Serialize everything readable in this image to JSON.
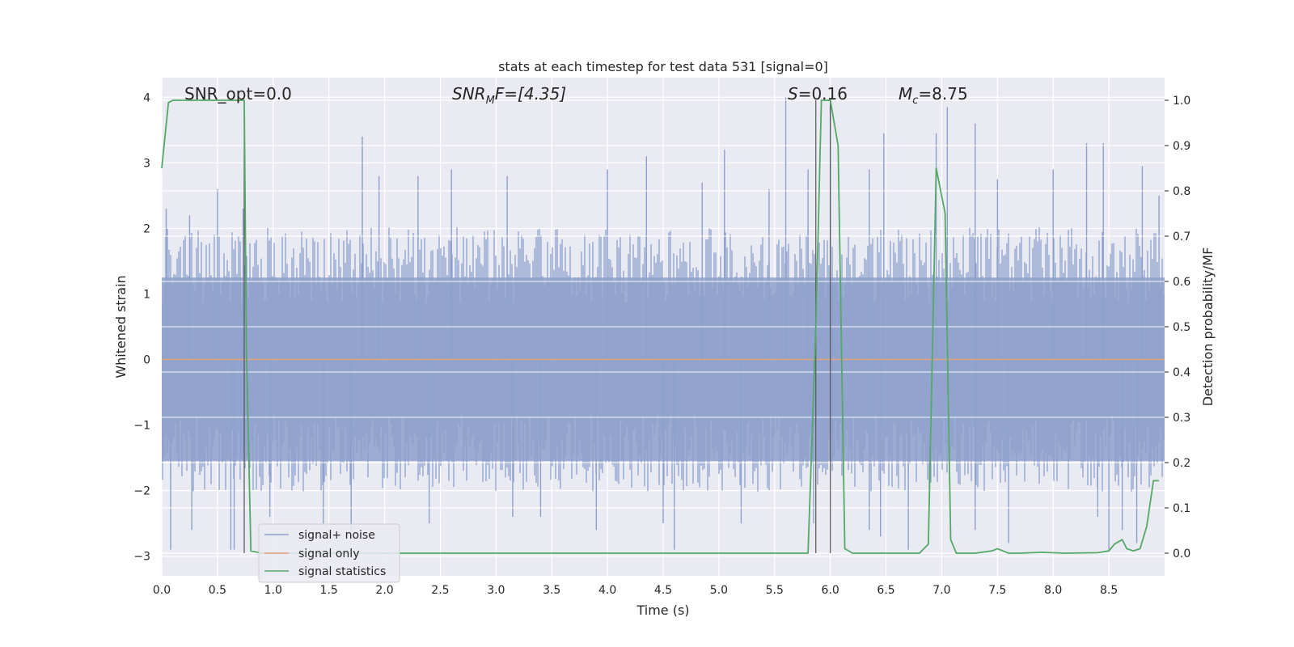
{
  "chart_data": {
    "type": "line",
    "title": "stats at each timestep for test data 531 [signal=0]",
    "xlabel": "Time (s)",
    "ylabel": "Whitened strain",
    "y2label": "Detection probability/MF",
    "xlim": [
      0.0,
      9.0
    ],
    "ylim": [
      -3.3,
      4.3
    ],
    "y2lim": [
      -0.05,
      1.05
    ],
    "x_ticks": [
      "0.0",
      "0.5",
      "1.0",
      "1.5",
      "2.0",
      "2.5",
      "3.0",
      "3.5",
      "4.0",
      "4.5",
      "5.0",
      "5.5",
      "6.0",
      "6.5",
      "7.0",
      "7.5",
      "8.0",
      "8.5"
    ],
    "x_tick_values": [
      0.0,
      0.5,
      1.0,
      1.5,
      2.0,
      2.5,
      3.0,
      3.5,
      4.0,
      4.5,
      5.0,
      5.5,
      6.0,
      6.5,
      7.0,
      7.5,
      8.0,
      8.5
    ],
    "y_ticks": [
      "4",
      "3",
      "2",
      "1",
      "0",
      "−1",
      "−2",
      "−3"
    ],
    "y_tick_values": [
      4,
      3,
      2,
      1,
      0,
      -1,
      -2,
      -3
    ],
    "y2_ticks": [
      "1.0",
      "0.9",
      "0.8",
      "0.7",
      "0.6",
      "0.5",
      "0.4",
      "0.3",
      "0.2",
      "0.1",
      "0.0"
    ],
    "y2_tick_values": [
      1.0,
      0.9,
      0.8,
      0.7,
      0.6,
      0.5,
      0.4,
      0.3,
      0.2,
      0.1,
      0.0
    ],
    "grid": true,
    "legend_placement": "lower-left",
    "annotations": {
      "snr_opt": "SNR_opt=0.0",
      "snr_mf_sym": "SNR",
      "snr_mf_sub": "M",
      "snr_mf_rest": "F=[4.35]",
      "s_sym": "S",
      "s_rest": "=0.16",
      "mc_sym": "M",
      "mc_sub": "c",
      "mc_rest": "=8.75"
    },
    "vlines": [
      0.74,
      5.87,
      6.0
    ],
    "series": [
      {
        "name": "signal+ noise",
        "color": "#8da0cb",
        "axis": "left",
        "noise_spikes_pos": [
          [
            0.04,
            2.3
          ],
          [
            0.25,
            2.2
          ],
          [
            0.5,
            2.6
          ],
          [
            0.73,
            2.3
          ],
          [
            1.8,
            3.4
          ],
          [
            1.95,
            2.8
          ],
          [
            2.3,
            2.8
          ],
          [
            2.6,
            2.9
          ],
          [
            3.1,
            2.8
          ],
          [
            4.0,
            2.9
          ],
          [
            4.35,
            3.1
          ],
          [
            4.85,
            2.7
          ],
          [
            5.05,
            3.2
          ],
          [
            5.45,
            2.6
          ],
          [
            5.6,
            4.0
          ],
          [
            5.8,
            2.9
          ],
          [
            6.0,
            3.9
          ],
          [
            6.35,
            2.9
          ],
          [
            6.48,
            3.45
          ],
          [
            6.95,
            3.45
          ],
          [
            7.05,
            3.85
          ],
          [
            7.3,
            3.6
          ],
          [
            7.5,
            2.75
          ],
          [
            8.0,
            2.9
          ],
          [
            8.3,
            3.3
          ],
          [
            8.45,
            3.3
          ],
          [
            8.8,
            2.95
          ],
          [
            8.95,
            2.5
          ]
        ],
        "noise_spikes_neg": [
          [
            0.08,
            -2.9
          ],
          [
            0.27,
            -2.6
          ],
          [
            0.62,
            -2.9
          ],
          [
            0.65,
            -2.9
          ],
          [
            0.97,
            -2.4
          ],
          [
            1.45,
            -2.5
          ],
          [
            1.7,
            -2.6
          ],
          [
            2.4,
            -2.5
          ],
          [
            3.15,
            -2.4
          ],
          [
            3.4,
            -2.4
          ],
          [
            3.9,
            -2.6
          ],
          [
            4.5,
            -2.5
          ],
          [
            4.6,
            -2.9
          ],
          [
            5.2,
            -2.5
          ],
          [
            5.85,
            -2.5
          ],
          [
            6.35,
            -2.6
          ],
          [
            6.45,
            -2.7
          ],
          [
            6.7,
            -2.9
          ],
          [
            7.3,
            -2.6
          ],
          [
            7.6,
            -2.8
          ],
          [
            8.4,
            -2.4
          ],
          [
            8.5,
            -2.9
          ],
          [
            8.62,
            -2.6
          ],
          [
            8.75,
            -2.8
          ]
        ],
        "band_abs": 1.55
      },
      {
        "name": "signal only",
        "color": "#e5a07e",
        "axis": "left",
        "x": [
          0.0,
          9.0
        ],
        "y": [
          0.0,
          0.0
        ]
      },
      {
        "name": "signal statistics",
        "color": "#55a868",
        "axis": "right",
        "x": [
          0.0,
          0.06,
          0.1,
          0.15,
          0.3,
          0.5,
          0.7,
          0.74,
          0.76,
          0.8,
          0.9,
          1.5,
          2.5,
          3.5,
          4.5,
          5.5,
          5.8,
          5.87,
          5.92,
          5.98,
          6.0,
          6.07,
          6.13,
          6.2,
          6.3,
          6.6,
          6.8,
          6.88,
          6.95,
          7.03,
          7.08,
          7.13,
          7.3,
          7.45,
          7.5,
          7.6,
          7.7,
          7.9,
          8.1,
          8.4,
          8.5,
          8.55,
          8.62,
          8.66,
          8.72,
          8.78,
          8.84,
          8.9,
          8.95
        ],
        "y": [
          0.85,
          0.995,
          1.0,
          1.0,
          1.0,
          1.0,
          1.0,
          1.0,
          0.45,
          0.005,
          0.0,
          0.0,
          0.0,
          0.0,
          0.0,
          0.0,
          0.0,
          0.5,
          1.0,
          1.0,
          1.0,
          0.9,
          0.01,
          0.0,
          0.0,
          0.0,
          0.0,
          0.02,
          0.85,
          0.75,
          0.03,
          0.0,
          0.0,
          0.005,
          0.01,
          0.0,
          0.0,
          0.002,
          0.0,
          0.001,
          0.005,
          0.02,
          0.03,
          0.01,
          0.005,
          0.01,
          0.06,
          0.16,
          0.16
        ]
      }
    ]
  }
}
